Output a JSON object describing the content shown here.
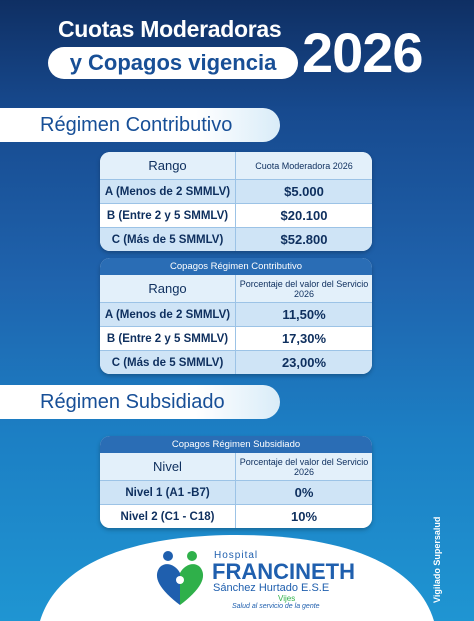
{
  "header": {
    "title": "Cuotas Moderadoras",
    "subtitle": "y Copagos vigencia",
    "year": "2026"
  },
  "sections": [
    {
      "title": "Régimen Contributivo",
      "tables": [
        {
          "header": [
            "Rango",
            "Cuota Moderadora 2026"
          ],
          "rows": [
            [
              "A (Menos de 2 SMMLV)",
              "$5.000"
            ],
            [
              "B (Entre 2 y 5 SMMLV)",
              "$20.100"
            ],
            [
              "C (Más de 5 SMMLV)",
              "$52.800"
            ]
          ]
        },
        {
          "caption": "Copagos Régimen Contributivo",
          "header": [
            "Rango",
            "Porcentaje del valor del Servicio 2026"
          ],
          "rows": [
            [
              "A (Menos de 2 SMMLV)",
              "11,50%"
            ],
            [
              "B (Entre 2 y 5 SMMLV)",
              "17,30%"
            ],
            [
              "C (Más de 5 SMMLV)",
              "23,00%"
            ]
          ]
        }
      ]
    },
    {
      "title": "Régimen Subsidiado",
      "tables": [
        {
          "caption": "Copagos Régimen Subsidiado",
          "header": [
            "Nivel",
            "Porcentaje del valor del Servicio 2026"
          ],
          "rows": [
            [
              "Nivel 1 (A1 -B7)",
              "0%"
            ],
            [
              "Nivel 2 (C1 - C18)",
              "10%"
            ]
          ]
        }
      ]
    }
  ],
  "footer": {
    "vigilado": "Vigilado Supersalud",
    "logo": {
      "hospital": "Hospital",
      "name": "FRANCINETH",
      "surname": "Sánchez Hurtado E.S.E",
      "town": "Vijes",
      "slogan": "Salud al servicio de la gente"
    }
  }
}
